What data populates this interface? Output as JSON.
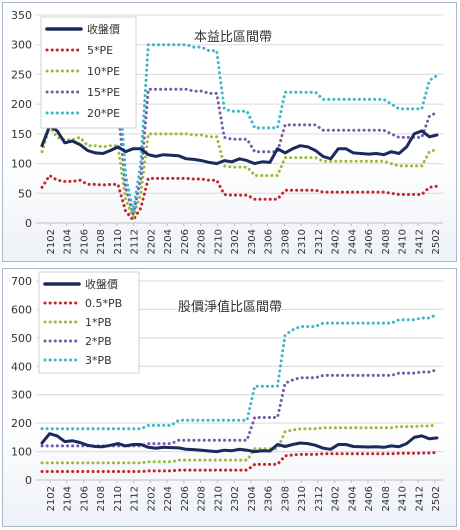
{
  "chart_data": [
    {
      "type": "line",
      "title": "本益比區間帶",
      "ylim": [
        0,
        350
      ],
      "yticks": [
        0,
        50,
        100,
        150,
        200,
        250,
        300,
        350
      ],
      "xtick_labels": [
        "2102",
        "2104",
        "2106",
        "2108",
        "2110",
        "2112",
        "2202",
        "2204",
        "2206",
        "2208",
        "2210",
        "2302",
        "2304",
        "2306",
        "2308",
        "2310",
        "2312",
        "2402",
        "2404",
        "2406",
        "2408",
        "2410",
        "2412",
        "2502"
      ],
      "grid": true,
      "legend_position": "top-left",
      "series": [
        {
          "name": "收盤價",
          "color": "#1b2a5c",
          "style": "solid",
          "values": [
            130,
            163,
            155,
            135,
            138,
            132,
            122,
            118,
            117,
            122,
            128,
            120,
            125,
            125,
            115,
            112,
            115,
            114,
            113,
            108,
            107,
            105,
            102,
            100,
            105,
            103,
            108,
            105,
            100,
            103,
            102,
            125,
            118,
            125,
            130,
            128,
            122,
            112,
            108,
            125,
            125,
            118,
            117,
            116,
            117,
            115,
            120,
            117,
            128,
            150,
            155,
            145,
            148
          ]
        },
        {
          "name": "5*PE",
          "color": "#c0262c",
          "style": "dotted",
          "values": [
            60,
            80,
            72,
            70,
            70,
            72,
            65,
            65,
            64,
            65,
            65,
            20,
            5,
            25,
            75,
            75,
            75,
            75,
            75,
            75,
            74,
            74,
            72,
            72,
            48,
            47,
            47,
            47,
            40,
            40,
            40,
            40,
            55,
            55,
            55,
            55,
            55,
            52,
            52,
            52,
            52,
            52,
            52,
            52,
            52,
            52,
            50,
            48,
            48,
            48,
            48,
            60,
            62
          ]
        },
        {
          "name": "10*PE",
          "color": "#9bbb3c",
          "style": "dotted",
          "values": [
            120,
            162,
            144,
            140,
            140,
            144,
            130,
            130,
            128,
            130,
            130,
            40,
            10,
            50,
            150,
            150,
            150,
            150,
            150,
            150,
            148,
            148,
            145,
            145,
            96,
            94,
            94,
            94,
            80,
            80,
            80,
            80,
            110,
            110,
            110,
            110,
            110,
            104,
            104,
            104,
            104,
            104,
            104,
            104,
            104,
            104,
            100,
            96,
            96,
            96,
            96,
            120,
            124
          ]
        },
        {
          "name": "15*PE",
          "color": "#7a5aa8",
          "style": "dotted",
          "values": [
            180,
            243,
            216,
            210,
            210,
            216,
            195,
            195,
            192,
            195,
            195,
            60,
            15,
            75,
            225,
            225,
            225,
            225,
            225,
            225,
            222,
            222,
            218,
            218,
            144,
            141,
            141,
            141,
            120,
            120,
            120,
            120,
            165,
            165,
            165,
            165,
            165,
            156,
            156,
            156,
            156,
            156,
            156,
            156,
            156,
            156,
            150,
            144,
            144,
            144,
            144,
            180,
            186
          ]
        },
        {
          "name": "20*PE",
          "color": "#3cb7cc",
          "style": "dotted",
          "values": [
            240,
            324,
            288,
            280,
            280,
            288,
            260,
            260,
            256,
            260,
            260,
            80,
            20,
            100,
            300,
            300,
            300,
            300,
            300,
            300,
            296,
            296,
            290,
            290,
            192,
            188,
            188,
            188,
            160,
            160,
            160,
            160,
            220,
            220,
            220,
            220,
            220,
            208,
            208,
            208,
            208,
            208,
            208,
            208,
            208,
            208,
            200,
            192,
            192,
            192,
            192,
            240,
            248
          ]
        }
      ]
    },
    {
      "type": "line",
      "title": "股價淨值比區間帶",
      "ylim": [
        0,
        700
      ],
      "yticks": [
        0,
        100,
        200,
        300,
        400,
        500,
        600,
        700
      ],
      "xtick_labels": [
        "2102",
        "2104",
        "2106",
        "2108",
        "2110",
        "2112",
        "2202",
        "2204",
        "2206",
        "2208",
        "2210",
        "2302",
        "2304",
        "2306",
        "2308",
        "2310",
        "2312",
        "2402",
        "2404",
        "2406",
        "2408",
        "2410",
        "2412",
        "2502"
      ],
      "grid": true,
      "legend_position": "top-left",
      "series": [
        {
          "name": "收盤價",
          "color": "#1b2a5c",
          "style": "solid",
          "values": [
            130,
            163,
            155,
            135,
            138,
            132,
            122,
            118,
            117,
            122,
            128,
            120,
            125,
            125,
            115,
            112,
            115,
            114,
            113,
            108,
            107,
            105,
            102,
            100,
            105,
            103,
            108,
            105,
            100,
            103,
            102,
            125,
            118,
            125,
            130,
            128,
            122,
            112,
            108,
            125,
            125,
            118,
            117,
            116,
            117,
            115,
            120,
            117,
            128,
            150,
            155,
            145,
            148
          ]
        },
        {
          "name": "0.5*PB",
          "color": "#c0262c",
          "style": "dotted",
          "values": [
            30,
            30,
            30,
            30,
            30,
            30,
            30,
            30,
            30,
            30,
            30,
            30,
            30,
            30,
            32,
            32,
            32,
            32,
            35,
            35,
            35,
            35,
            35,
            35,
            35,
            35,
            35,
            35,
            55,
            55,
            55,
            55,
            85,
            88,
            90,
            90,
            90,
            92,
            92,
            92,
            92,
            92,
            92,
            92,
            92,
            92,
            92,
            94,
            94,
            94,
            95,
            95,
            97
          ]
        },
        {
          "name": "1*PB",
          "color": "#9bbb3c",
          "style": "dotted",
          "values": [
            60,
            60,
            60,
            60,
            60,
            60,
            60,
            60,
            60,
            60,
            60,
            60,
            60,
            60,
            64,
            64,
            64,
            64,
            70,
            70,
            70,
            70,
            70,
            70,
            70,
            70,
            70,
            70,
            110,
            110,
            110,
            110,
            170,
            176,
            180,
            180,
            180,
            184,
            184,
            184,
            184,
            184,
            184,
            184,
            184,
            184,
            184,
            188,
            188,
            188,
            190,
            190,
            194
          ]
        },
        {
          "name": "2*PB",
          "color": "#7a5aa8",
          "style": "dotted",
          "values": [
            120,
            120,
            120,
            120,
            120,
            120,
            120,
            120,
            120,
            120,
            120,
            120,
            120,
            120,
            128,
            128,
            128,
            128,
            140,
            140,
            140,
            140,
            140,
            140,
            140,
            140,
            140,
            140,
            220,
            220,
            220,
            220,
            340,
            352,
            360,
            360,
            360,
            368,
            368,
            368,
            368,
            368,
            368,
            368,
            368,
            368,
            368,
            376,
            376,
            376,
            380,
            380,
            388
          ]
        },
        {
          "name": "3*PB",
          "color": "#3cb7cc",
          "style": "dotted",
          "values": [
            180,
            180,
            180,
            180,
            180,
            180,
            180,
            180,
            180,
            180,
            180,
            180,
            180,
            180,
            192,
            192,
            192,
            192,
            210,
            210,
            210,
            210,
            210,
            210,
            210,
            210,
            210,
            210,
            330,
            330,
            330,
            330,
            510,
            528,
            540,
            540,
            540,
            552,
            552,
            552,
            552,
            552,
            552,
            552,
            552,
            552,
            552,
            564,
            564,
            564,
            570,
            570,
            582
          ]
        }
      ]
    }
  ]
}
